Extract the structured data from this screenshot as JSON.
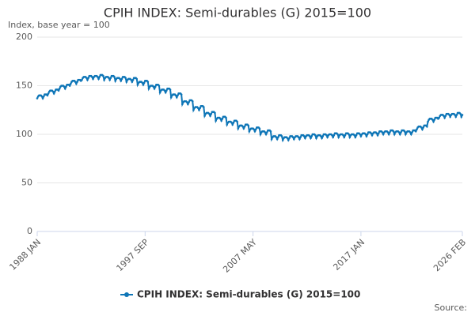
{
  "chart_data": {
    "type": "line",
    "title": "CPIH INDEX: Semi-durables (G) 2015=100",
    "y_label": "Index, base year = 100",
    "source": "Source:",
    "ylim": [
      0,
      200
    ],
    "yticks": [
      0,
      50,
      100,
      150,
      200
    ],
    "grid": true,
    "categories": [
      "1988 JAN",
      null,
      null,
      null,
      null,
      null,
      null,
      null,
      null,
      null,
      null,
      null,
      null,
      null,
      null,
      null,
      null,
      null,
      null,
      null,
      null,
      null,
      null,
      null,
      null,
      null,
      null,
      null,
      null,
      null,
      null,
      null,
      null,
      null,
      null,
      null,
      null,
      null,
      null,
      null,
      null,
      null,
      null,
      null,
      null,
      null,
      null,
      null,
      null,
      null,
      null,
      null,
      null,
      null,
      null,
      null,
      null,
      null,
      null,
      null,
      null,
      null,
      null,
      null,
      null,
      null,
      null,
      null,
      null,
      null,
      null,
      null,
      null,
      null,
      null,
      null,
      null,
      null,
      null,
      null,
      null,
      null,
      null,
      null,
      null,
      null,
      null,
      null,
      null,
      null,
      null,
      null,
      null,
      null,
      null,
      null,
      null,
      null,
      null,
      null,
      null,
      null,
      null,
      null,
      null,
      null,
      null,
      null,
      null,
      null,
      null,
      null,
      null,
      null,
      null,
      null,
      "1997 SEP",
      null,
      null,
      null,
      null,
      null,
      null,
      null,
      null,
      null,
      null,
      null,
      null,
      null,
      null,
      null,
      null,
      null,
      null,
      null,
      null,
      null,
      null,
      null,
      null,
      null,
      null,
      null,
      null,
      null,
      null,
      null,
      null,
      null,
      null,
      null,
      null,
      null,
      null,
      null,
      null,
      null,
      null,
      null,
      null,
      null,
      null,
      null,
      null,
      null,
      null,
      null,
      null,
      null,
      null,
      null,
      null,
      null,
      null,
      null,
      null,
      null,
      null,
      null,
      null,
      null,
      null,
      null,
      null,
      null,
      null,
      null,
      null,
      null,
      null,
      null,
      null,
      null,
      null,
      null,
      null,
      null,
      null,
      null,
      null,
      null,
      null,
      null,
      null,
      null,
      null,
      null,
      null,
      null,
      null,
      null,
      null,
      null,
      null,
      null,
      null,
      null,
      null,
      null,
      null,
      null,
      null,
      null,
      null,
      null,
      null,
      null,
      null,
      null,
      null,
      null,
      "2007 MAY",
      null,
      null,
      null,
      null,
      null,
      null,
      null,
      null,
      null,
      null,
      null,
      null,
      null,
      null,
      null,
      null,
      null,
      null,
      null,
      null,
      null,
      null,
      null,
      null,
      null,
      null,
      null,
      null,
      null,
      null,
      null,
      null,
      null,
      null,
      null,
      null,
      null,
      null,
      null,
      null,
      null,
      null,
      null,
      null,
      null,
      null,
      null,
      null,
      null,
      null,
      null,
      null,
      null,
      null,
      null,
      null,
      null,
      null,
      null,
      null,
      null,
      null,
      null,
      null,
      null,
      null,
      null,
      null,
      null,
      null,
      null,
      null,
      null,
      null,
      null,
      null,
      null,
      null,
      null,
      null,
      null,
      null,
      null,
      null,
      null,
      null,
      null,
      null,
      null,
      null,
      null,
      null,
      null,
      null,
      null,
      null,
      null,
      null,
      null,
      null,
      null,
      null,
      null,
      null,
      null,
      null,
      null,
      null,
      null,
      null,
      null,
      null,
      null,
      null,
      null,
      "2017 JAN",
      null,
      null,
      null,
      null,
      null,
      null,
      null,
      null,
      null,
      null,
      null,
      null,
      null,
      null,
      null,
      null,
      null,
      null,
      null,
      null,
      null,
      null,
      null,
      null,
      null,
      null,
      null,
      null,
      null,
      null,
      null,
      null,
      null,
      null,
      null,
      null,
      null,
      null,
      null,
      null,
      null,
      null,
      null,
      null,
      null,
      null,
      null,
      null,
      null,
      null,
      null,
      null,
      null,
      null,
      null,
      null,
      null,
      null,
      null,
      null,
      null,
      null,
      null,
      null,
      null,
      null,
      null,
      null,
      null,
      null,
      null,
      null,
      null,
      null,
      null,
      null,
      null,
      null,
      null,
      null,
      null,
      null,
      null,
      null,
      null,
      null,
      null,
      null,
      null,
      null,
      null,
      null,
      null,
      null,
      null,
      null,
      null,
      null,
      null,
      null,
      null,
      null,
      null,
      null,
      null,
      null,
      null,
      null,
      "2026 FEB"
    ],
    "series": [
      {
        "name": "CPIH INDEX: Semi-durables (G) 2015=100",
        "color": "#0f76b7",
        "values": [
          137,
          139,
          140,
          140,
          140,
          139,
          137,
          139,
          141,
          141,
          141,
          140,
          142,
          144,
          145,
          145,
          145,
          144,
          142,
          144,
          146,
          146,
          146,
          145,
          147,
          149,
          150,
          150,
          150,
          149,
          147,
          149,
          151,
          151,
          151,
          150,
          152,
          154,
          155,
          155,
          155,
          154,
          152,
          154,
          156,
          156,
          156,
          155,
          156,
          158,
          159,
          159,
          159,
          158,
          156,
          158,
          160,
          160,
          160,
          159,
          157,
          159,
          160,
          160,
          160,
          159,
          157,
          159,
          161,
          161,
          161,
          160,
          156,
          158,
          159,
          159,
          159,
          158,
          156,
          158,
          160,
          160,
          160,
          159,
          155,
          157,
          158,
          158,
          158,
          157,
          155,
          157,
          159,
          159,
          159,
          158,
          154,
          156,
          157,
          157,
          157,
          156,
          154,
          156,
          158,
          158,
          158,
          157,
          151,
          153,
          154,
          154,
          154,
          153,
          151,
          153,
          155,
          155,
          155,
          154,
          147,
          149,
          150,
          150,
          150,
          149,
          147,
          149,
          151,
          151,
          151,
          150,
          143,
          145,
          146,
          146,
          146,
          145,
          143,
          145,
          147,
          147,
          147,
          146,
          138,
          140,
          141,
          141,
          141,
          140,
          138,
          140,
          142,
          142,
          142,
          141,
          131,
          133,
          134,
          134,
          134,
          133,
          131,
          133,
          135,
          135,
          135,
          134,
          125,
          127,
          128,
          128,
          128,
          127,
          125,
          127,
          129,
          129,
          129,
          128,
          119,
          121,
          122,
          122,
          122,
          121,
          119,
          121,
          123,
          123,
          123,
          122,
          114,
          116,
          117,
          117,
          117,
          116,
          114,
          116,
          118,
          118,
          118,
          117,
          110,
          112,
          113,
          113,
          113,
          112,
          110,
          112,
          114,
          114,
          114,
          113,
          106,
          108,
          109,
          109,
          109,
          108,
          106,
          108,
          110,
          110,
          110,
          109,
          103,
          105,
          106,
          106,
          106,
          105,
          103,
          105,
          107,
          107,
          107,
          106,
          100,
          102,
          103,
          103,
          103,
          102,
          100,
          102,
          104,
          104,
          104,
          103,
          95,
          97,
          98,
          98,
          98,
          97,
          95,
          97,
          99,
          99,
          99,
          98,
          94,
          96,
          97,
          97,
          97,
          96,
          94,
          96,
          98,
          98,
          98,
          97,
          95,
          97,
          98,
          98,
          98,
          97,
          95,
          97,
          99,
          99,
          99,
          98,
          96,
          98,
          99,
          99,
          99,
          98,
          96,
          98,
          100,
          100,
          100,
          99,
          96,
          98,
          99,
          99,
          99,
          98,
          96,
          98,
          100,
          100,
          100,
          99,
          97,
          99,
          100,
          100,
          100,
          99,
          97,
          99,
          101,
          101,
          101,
          100,
          97,
          99,
          100,
          100,
          100,
          99,
          97,
          99,
          101,
          101,
          101,
          100,
          97,
          99,
          100,
          100,
          100,
          99,
          97,
          99,
          101,
          101,
          101,
          100,
          98,
          100,
          101,
          101,
          101,
          100,
          98,
          100,
          102,
          102,
          102,
          101,
          99,
          101,
          102,
          102,
          102,
          101,
          99,
          101,
          103,
          103,
          103,
          102,
          100,
          102,
          103,
          103,
          103,
          102,
          100,
          102,
          104,
          104,
          104,
          103,
          100,
          102,
          103,
          103,
          103,
          102,
          100,
          102,
          104,
          104,
          104,
          103,
          100,
          102,
          103,
          103,
          103,
          102,
          100,
          102,
          104,
          104,
          104,
          103,
          105,
          107,
          108,
          108,
          108,
          107,
          105,
          107,
          109,
          109,
          109,
          108,
          113,
          115,
          116,
          116,
          116,
          115,
          113,
          115,
          117,
          117,
          117,
          116,
          117,
          119,
          120,
          120,
          120,
          119,
          117,
          119,
          121,
          121,
          121,
          120,
          118,
          120,
          121,
          121,
          121,
          120,
          118,
          120,
          122,
          122,
          122,
          121,
          118,
          120
        ]
      }
    ]
  }
}
